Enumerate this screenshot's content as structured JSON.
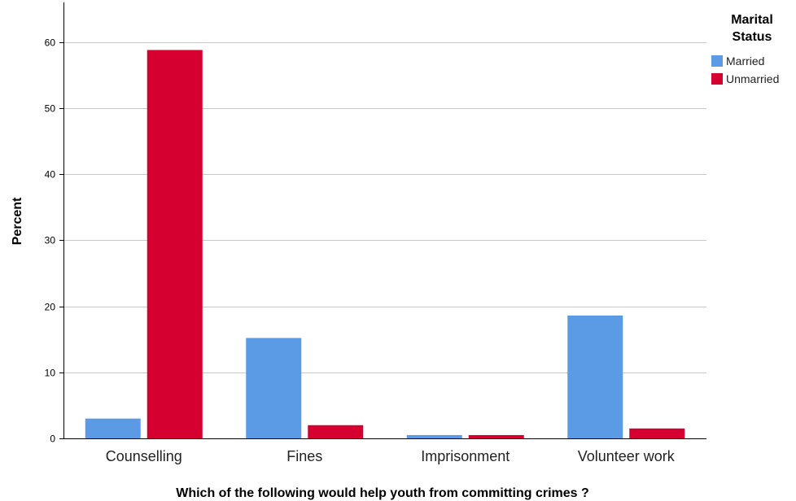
{
  "chart_data": {
    "type": "bar",
    "categories": [
      "Counselling",
      "Fines",
      "Imprisonment",
      "Volunteer work"
    ],
    "series": [
      {
        "name": "Married",
        "values": [
          3.0,
          15.2,
          0.5,
          18.6
        ],
        "color": "#5b9be6"
      },
      {
        "name": "Unmarried",
        "values": [
          58.8,
          2.0,
          0.5,
          1.5
        ],
        "color": "#d5002f"
      }
    ],
    "xlabel": "Which of the following would help youth from committing crimes ?",
    "ylabel": "Percent",
    "ylim": [
      0,
      66
    ],
    "yticks": [
      0,
      10,
      20,
      30,
      40,
      50,
      60
    ],
    "grid": true,
    "legend": {
      "title_line1": "Marital",
      "title_line2": "Status",
      "position": "top-right"
    }
  }
}
